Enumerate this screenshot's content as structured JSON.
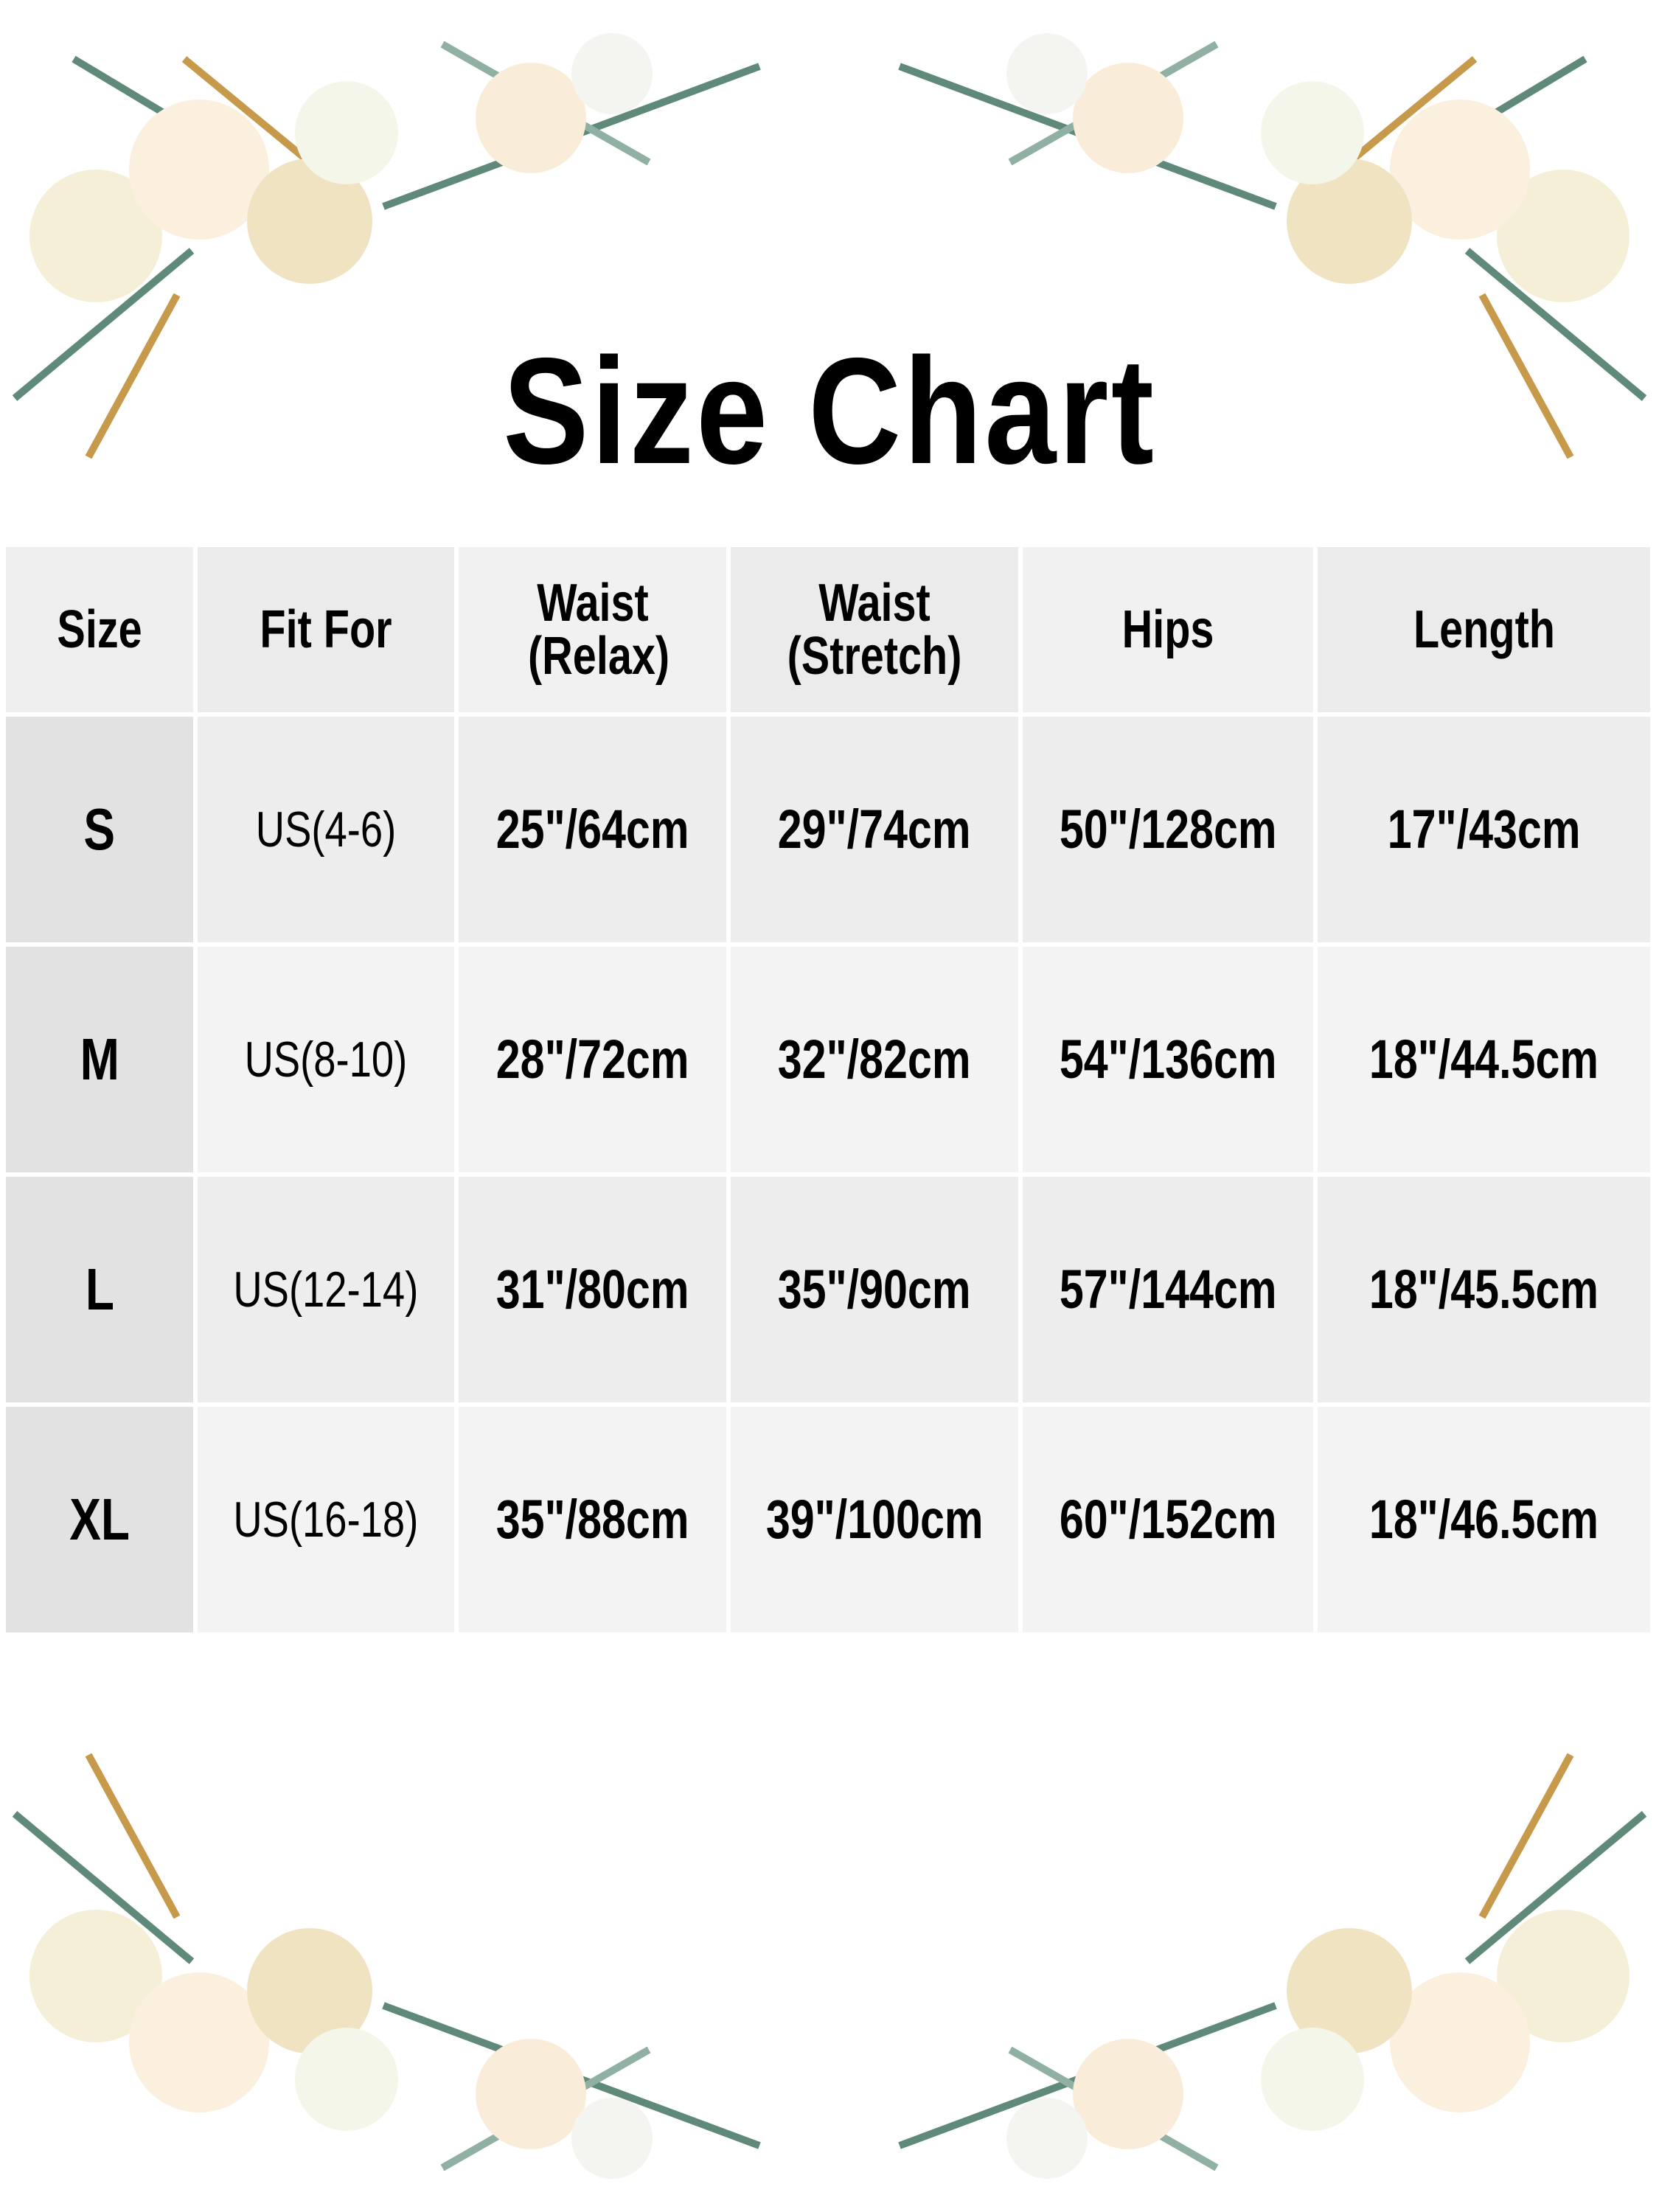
{
  "title": "Size Chart",
  "table": {
    "headers": [
      "Size",
      "Fit For",
      "Waist (Relax)",
      "Waist (Stretch)",
      "Hips",
      "Length"
    ],
    "rows": [
      [
        "S",
        "US(4-6)",
        "25\"/64cm",
        "29\"/74cm",
        "50\"/128cm",
        "17\"/43cm"
      ],
      [
        "M",
        "US(8-10)",
        "28\"/72cm",
        "32\"/82cm",
        "54\"/136cm",
        "18\"/44.5cm"
      ],
      [
        "L",
        "US(12-14)",
        "31\"/80cm",
        "35\"/90cm",
        "57\"/144cm",
        "18\"/45.5cm"
      ],
      [
        "XL",
        "US(16-18)",
        "35\"/88cm",
        "39\"/100cm",
        "60\"/152cm",
        "18\"/46.5cm"
      ]
    ]
  },
  "decorations": {
    "flower_colors": [
      "#f6efd8",
      "#fbf6e6",
      "#efe3c2"
    ],
    "leaf_colors": [
      "#5f8a7a",
      "#8fb0a2",
      "#c79a4b",
      "#4f9a4a"
    ]
  }
}
